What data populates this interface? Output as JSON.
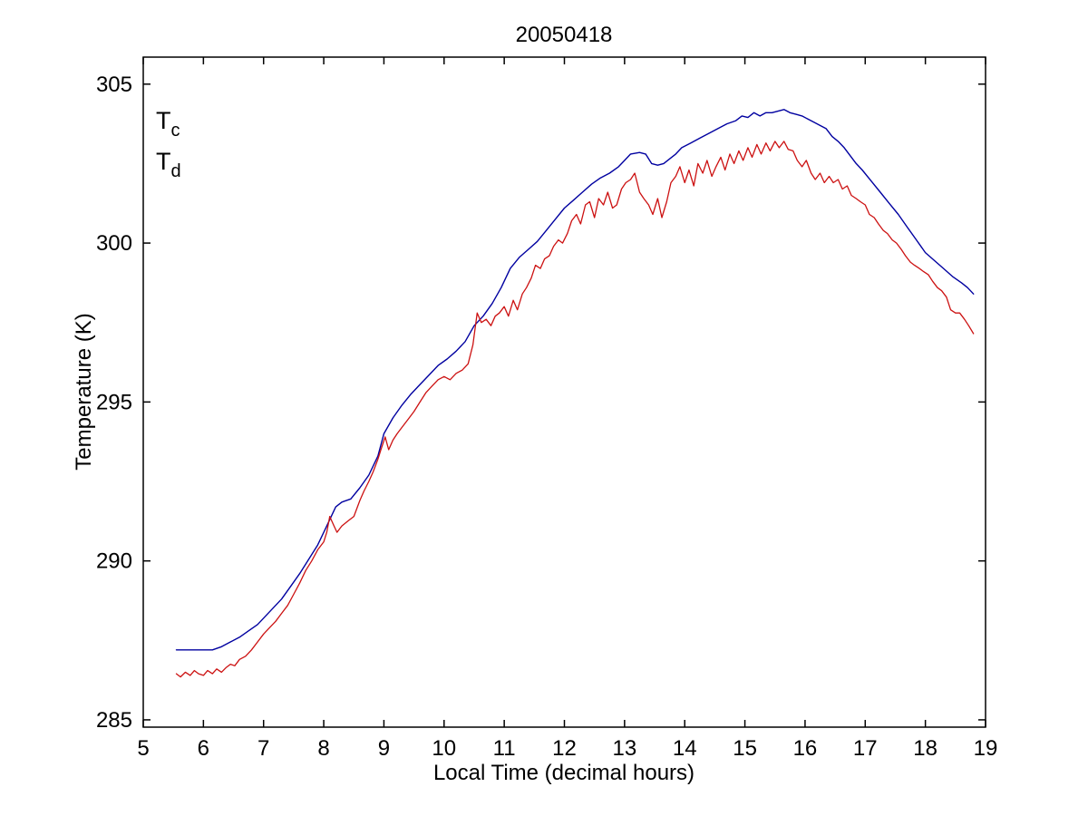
{
  "figure": {
    "background": "#ffffff",
    "axis_color": "#000000"
  },
  "chart_data": {
    "type": "line",
    "title": "20050418",
    "xlabel": "Local Time (decimal hours)",
    "ylabel": "Temperature (K)",
    "xlim": [
      5,
      19
    ],
    "ylim": [
      284.77,
      305.85
    ],
    "xticks": [
      5,
      6,
      7,
      8,
      9,
      10,
      11,
      12,
      13,
      14,
      15,
      16,
      17,
      18,
      19
    ],
    "yticks": [
      285,
      290,
      295,
      300,
      305
    ],
    "grid": false,
    "box": true,
    "legend_position": "top-left-inside",
    "legend": [
      {
        "main": "T",
        "sub": "c",
        "color": "#0000dd"
      },
      {
        "main": "T",
        "sub": "d",
        "color": "#dd0000"
      }
    ],
    "series": [
      {
        "name": "T_c",
        "color": "#0000a0",
        "data": [
          [
            5.55,
            287.2
          ],
          [
            5.75,
            287.2
          ],
          [
            5.95,
            287.2
          ],
          [
            6.15,
            287.2
          ],
          [
            6.3,
            287.3
          ],
          [
            6.45,
            287.45
          ],
          [
            6.6,
            287.6
          ],
          [
            6.75,
            287.8
          ],
          [
            6.9,
            288.0
          ],
          [
            7.0,
            288.2
          ],
          [
            7.15,
            288.5
          ],
          [
            7.3,
            288.8
          ],
          [
            7.45,
            289.2
          ],
          [
            7.6,
            289.6
          ],
          [
            7.75,
            290.05
          ],
          [
            7.9,
            290.5
          ],
          [
            8.0,
            290.9
          ],
          [
            8.1,
            291.3
          ],
          [
            8.2,
            291.7
          ],
          [
            8.3,
            291.85
          ],
          [
            8.45,
            291.95
          ],
          [
            8.6,
            292.3
          ],
          [
            8.75,
            292.7
          ],
          [
            8.9,
            293.3
          ],
          [
            9.0,
            294.0
          ],
          [
            9.15,
            294.5
          ],
          [
            9.3,
            294.9
          ],
          [
            9.45,
            295.25
          ],
          [
            9.6,
            295.55
          ],
          [
            9.75,
            295.85
          ],
          [
            9.9,
            296.15
          ],
          [
            10.05,
            296.35
          ],
          [
            10.2,
            296.6
          ],
          [
            10.35,
            296.9
          ],
          [
            10.5,
            297.4
          ],
          [
            10.65,
            297.7
          ],
          [
            10.8,
            298.1
          ],
          [
            10.95,
            298.6
          ],
          [
            11.1,
            299.2
          ],
          [
            11.25,
            299.55
          ],
          [
            11.4,
            299.8
          ],
          [
            11.55,
            300.05
          ],
          [
            11.7,
            300.4
          ],
          [
            11.85,
            300.75
          ],
          [
            12.0,
            301.1
          ],
          [
            12.15,
            301.35
          ],
          [
            12.3,
            301.6
          ],
          [
            12.45,
            301.85
          ],
          [
            12.6,
            302.05
          ],
          [
            12.75,
            302.2
          ],
          [
            12.9,
            302.4
          ],
          [
            13.0,
            302.6
          ],
          [
            13.1,
            302.8
          ],
          [
            13.25,
            302.85
          ],
          [
            13.35,
            302.8
          ],
          [
            13.45,
            302.5
          ],
          [
            13.55,
            302.45
          ],
          [
            13.65,
            302.5
          ],
          [
            13.75,
            302.65
          ],
          [
            13.85,
            302.8
          ],
          [
            13.95,
            303.0
          ],
          [
            14.1,
            303.15
          ],
          [
            14.25,
            303.3
          ],
          [
            14.4,
            303.45
          ],
          [
            14.55,
            303.6
          ],
          [
            14.7,
            303.75
          ],
          [
            14.85,
            303.85
          ],
          [
            14.95,
            304.0
          ],
          [
            15.05,
            303.95
          ],
          [
            15.15,
            304.1
          ],
          [
            15.25,
            304.0
          ],
          [
            15.35,
            304.1
          ],
          [
            15.45,
            304.1
          ],
          [
            15.55,
            304.15
          ],
          [
            15.65,
            304.2
          ],
          [
            15.75,
            304.1
          ],
          [
            15.85,
            304.05
          ],
          [
            15.95,
            304.0
          ],
          [
            16.05,
            303.9
          ],
          [
            16.15,
            303.8
          ],
          [
            16.25,
            303.7
          ],
          [
            16.35,
            303.6
          ],
          [
            16.45,
            303.35
          ],
          [
            16.55,
            303.2
          ],
          [
            16.65,
            303.0
          ],
          [
            16.75,
            302.75
          ],
          [
            16.85,
            302.5
          ],
          [
            16.95,
            302.3
          ],
          [
            17.1,
            301.95
          ],
          [
            17.25,
            301.6
          ],
          [
            17.4,
            301.25
          ],
          [
            17.55,
            300.9
          ],
          [
            17.7,
            300.5
          ],
          [
            17.85,
            300.1
          ],
          [
            18.0,
            299.7
          ],
          [
            18.15,
            299.45
          ],
          [
            18.3,
            299.2
          ],
          [
            18.45,
            298.95
          ],
          [
            18.6,
            298.75
          ],
          [
            18.7,
            298.6
          ],
          [
            18.8,
            298.4
          ]
        ]
      },
      {
        "name": "T_d",
        "color": "#cc1111",
        "data": [
          [
            5.55,
            286.45
          ],
          [
            5.62,
            286.35
          ],
          [
            5.7,
            286.5
          ],
          [
            5.78,
            286.4
          ],
          [
            5.85,
            286.55
          ],
          [
            5.92,
            286.45
          ],
          [
            6.0,
            286.4
          ],
          [
            6.07,
            286.55
          ],
          [
            6.15,
            286.45
          ],
          [
            6.22,
            286.6
          ],
          [
            6.3,
            286.5
          ],
          [
            6.38,
            286.65
          ],
          [
            6.45,
            286.75
          ],
          [
            6.52,
            286.7
          ],
          [
            6.6,
            286.9
          ],
          [
            6.7,
            287.0
          ],
          [
            6.8,
            287.2
          ],
          [
            6.9,
            287.45
          ],
          [
            7.0,
            287.7
          ],
          [
            7.1,
            287.9
          ],
          [
            7.2,
            288.1
          ],
          [
            7.3,
            288.35
          ],
          [
            7.4,
            288.6
          ],
          [
            7.5,
            288.95
          ],
          [
            7.6,
            289.3
          ],
          [
            7.7,
            289.7
          ],
          [
            7.8,
            290.0
          ],
          [
            7.9,
            290.35
          ],
          [
            8.0,
            290.6
          ],
          [
            8.05,
            290.9
          ],
          [
            8.1,
            291.4
          ],
          [
            8.17,
            291.1
          ],
          [
            8.22,
            290.9
          ],
          [
            8.3,
            291.1
          ],
          [
            8.4,
            291.25
          ],
          [
            8.5,
            291.4
          ],
          [
            8.6,
            291.9
          ],
          [
            8.67,
            292.2
          ],
          [
            8.75,
            292.5
          ],
          [
            8.82,
            292.8
          ],
          [
            8.9,
            293.2
          ],
          [
            8.95,
            293.5
          ],
          [
            9.02,
            293.9
          ],
          [
            9.08,
            293.5
          ],
          [
            9.15,
            293.8
          ],
          [
            9.22,
            294.0
          ],
          [
            9.3,
            294.2
          ],
          [
            9.4,
            294.45
          ],
          [
            9.5,
            294.7
          ],
          [
            9.6,
            295.0
          ],
          [
            9.7,
            295.3
          ],
          [
            9.8,
            295.5
          ],
          [
            9.9,
            295.7
          ],
          [
            10.0,
            295.8
          ],
          [
            10.1,
            295.7
          ],
          [
            10.2,
            295.9
          ],
          [
            10.3,
            296.0
          ],
          [
            10.4,
            296.2
          ],
          [
            10.48,
            296.8
          ],
          [
            10.55,
            297.8
          ],
          [
            10.62,
            297.5
          ],
          [
            10.7,
            297.6
          ],
          [
            10.78,
            297.4
          ],
          [
            10.85,
            297.7
          ],
          [
            10.92,
            297.8
          ],
          [
            11.0,
            298.0
          ],
          [
            11.07,
            297.7
          ],
          [
            11.15,
            298.2
          ],
          [
            11.22,
            297.9
          ],
          [
            11.3,
            298.4
          ],
          [
            11.37,
            298.6
          ],
          [
            11.45,
            298.9
          ],
          [
            11.52,
            299.3
          ],
          [
            11.6,
            299.2
          ],
          [
            11.67,
            299.5
          ],
          [
            11.75,
            299.6
          ],
          [
            11.82,
            299.9
          ],
          [
            11.9,
            300.1
          ],
          [
            11.97,
            300.0
          ],
          [
            12.05,
            300.3
          ],
          [
            12.12,
            300.7
          ],
          [
            12.2,
            300.9
          ],
          [
            12.27,
            300.6
          ],
          [
            12.35,
            301.2
          ],
          [
            12.42,
            301.3
          ],
          [
            12.5,
            300.8
          ],
          [
            12.57,
            301.4
          ],
          [
            12.65,
            301.2
          ],
          [
            12.72,
            301.6
          ],
          [
            12.8,
            301.1
          ],
          [
            12.87,
            301.2
          ],
          [
            12.95,
            301.7
          ],
          [
            13.02,
            301.9
          ],
          [
            13.1,
            302.0
          ],
          [
            13.17,
            302.2
          ],
          [
            13.25,
            301.6
          ],
          [
            13.32,
            301.4
          ],
          [
            13.4,
            301.2
          ],
          [
            13.47,
            300.9
          ],
          [
            13.55,
            301.4
          ],
          [
            13.62,
            300.8
          ],
          [
            13.7,
            301.3
          ],
          [
            13.77,
            301.9
          ],
          [
            13.85,
            302.1
          ],
          [
            13.92,
            302.4
          ],
          [
            14.0,
            301.9
          ],
          [
            14.07,
            302.3
          ],
          [
            14.15,
            301.8
          ],
          [
            14.22,
            302.5
          ],
          [
            14.3,
            302.2
          ],
          [
            14.37,
            302.6
          ],
          [
            14.45,
            302.1
          ],
          [
            14.52,
            302.4
          ],
          [
            14.6,
            302.7
          ],
          [
            14.67,
            302.3
          ],
          [
            14.75,
            302.8
          ],
          [
            14.82,
            302.5
          ],
          [
            14.9,
            302.9
          ],
          [
            14.97,
            302.6
          ],
          [
            15.05,
            303.0
          ],
          [
            15.12,
            302.7
          ],
          [
            15.2,
            303.1
          ],
          [
            15.27,
            302.8
          ],
          [
            15.35,
            303.15
          ],
          [
            15.42,
            302.9
          ],
          [
            15.5,
            303.2
          ],
          [
            15.57,
            303.0
          ],
          [
            15.65,
            303.2
          ],
          [
            15.72,
            302.95
          ],
          [
            15.8,
            302.9
          ],
          [
            15.87,
            302.6
          ],
          [
            15.95,
            302.4
          ],
          [
            16.02,
            302.6
          ],
          [
            16.1,
            302.2
          ],
          [
            16.17,
            302.0
          ],
          [
            16.25,
            302.2
          ],
          [
            16.32,
            301.9
          ],
          [
            16.4,
            302.1
          ],
          [
            16.47,
            301.9
          ],
          [
            16.55,
            302.0
          ],
          [
            16.62,
            301.7
          ],
          [
            16.7,
            301.8
          ],
          [
            16.77,
            301.5
          ],
          [
            16.85,
            301.4
          ],
          [
            16.92,
            301.3
          ],
          [
            17.0,
            301.2
          ],
          [
            17.07,
            300.9
          ],
          [
            17.15,
            300.8
          ],
          [
            17.22,
            300.6
          ],
          [
            17.3,
            300.4
          ],
          [
            17.37,
            300.3
          ],
          [
            17.45,
            300.1
          ],
          [
            17.52,
            300.0
          ],
          [
            17.6,
            299.8
          ],
          [
            17.67,
            299.6
          ],
          [
            17.75,
            299.4
          ],
          [
            17.82,
            299.3
          ],
          [
            17.9,
            299.2
          ],
          [
            17.97,
            299.1
          ],
          [
            18.05,
            299.0
          ],
          [
            18.12,
            298.8
          ],
          [
            18.2,
            298.6
          ],
          [
            18.27,
            298.5
          ],
          [
            18.35,
            298.3
          ],
          [
            18.42,
            297.9
          ],
          [
            18.5,
            297.8
          ],
          [
            18.57,
            297.8
          ],
          [
            18.65,
            297.6
          ],
          [
            18.72,
            297.4
          ],
          [
            18.8,
            297.15
          ]
        ]
      }
    ]
  }
}
